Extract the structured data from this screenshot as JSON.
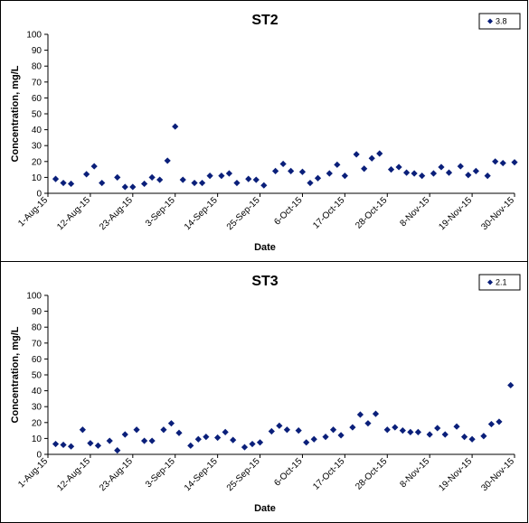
{
  "chart_data": [
    {
      "type": "scatter",
      "title": "ST2",
      "xlabel": "Date",
      "ylabel": "Concentration, mg/L",
      "ylim": [
        0,
        100
      ],
      "yticks": [
        "0",
        "10",
        "20",
        "30",
        "40",
        "50",
        "60",
        "70",
        "80",
        "90",
        "100"
      ],
      "xlim": [
        "2015-08-01",
        "2015-11-30"
      ],
      "xtick_labels": [
        "1-Aug-15",
        "12-Aug-15",
        "23-Aug-15",
        "3-Sep-15",
        "14-Sep-15",
        "25-Sep-15",
        "6-Oct-15",
        "17-Oct-15",
        "28-Oct-15",
        "8-Nov-15",
        "19-Nov-15",
        "30-Nov-15"
      ],
      "grid": false,
      "legend_position": "top-right",
      "marker_color": "#0a1f7a",
      "series": [
        {
          "name": "3.8",
          "points": [
            [
              "2015-08-03",
              9
            ],
            [
              "2015-08-05",
              6.5
            ],
            [
              "2015-08-07",
              6
            ],
            [
              "2015-08-11",
              12
            ],
            [
              "2015-08-13",
              17
            ],
            [
              "2015-08-15",
              6.5
            ],
            [
              "2015-08-19",
              10
            ],
            [
              "2015-08-21",
              4
            ],
            [
              "2015-08-23",
              4
            ],
            [
              "2015-08-26",
              6
            ],
            [
              "2015-08-28",
              10
            ],
            [
              "2015-08-30",
              8.5
            ],
            [
              "2015-09-01",
              20.5
            ],
            [
              "2015-09-03",
              42
            ],
            [
              "2015-09-05",
              8.5
            ],
            [
              "2015-09-08",
              6.5
            ],
            [
              "2015-09-10",
              6.5
            ],
            [
              "2015-09-12",
              11
            ],
            [
              "2015-09-15",
              11
            ],
            [
              "2015-09-17",
              12.5
            ],
            [
              "2015-09-19",
              6.5
            ],
            [
              "2015-09-22",
              9
            ],
            [
              "2015-09-24",
              8.5
            ],
            [
              "2015-09-26",
              5
            ],
            [
              "2015-09-29",
              14
            ],
            [
              "2015-10-01",
              18.5
            ],
            [
              "2015-10-03",
              14
            ],
            [
              "2015-10-06",
              13.5
            ],
            [
              "2015-10-08",
              6.5
            ],
            [
              "2015-10-10",
              9.5
            ],
            [
              "2015-10-13",
              12.5
            ],
            [
              "2015-10-15",
              18
            ],
            [
              "2015-10-17",
              11
            ],
            [
              "2015-10-20",
              24.5
            ],
            [
              "2015-10-22",
              15.5
            ],
            [
              "2015-10-24",
              22
            ],
            [
              "2015-10-26",
              25
            ],
            [
              "2015-10-29",
              15
            ],
            [
              "2015-10-31",
              16.5
            ],
            [
              "2015-11-02",
              13
            ],
            [
              "2015-11-04",
              12.5
            ],
            [
              "2015-11-06",
              11
            ],
            [
              "2015-11-09",
              12.5
            ],
            [
              "2015-11-11",
              16.5
            ],
            [
              "2015-11-13",
              13
            ],
            [
              "2015-11-16",
              17
            ],
            [
              "2015-11-18",
              11.5
            ],
            [
              "2015-11-20",
              14
            ],
            [
              "2015-11-23",
              11
            ],
            [
              "2015-11-25",
              20
            ],
            [
              "2015-11-27",
              19
            ],
            [
              "2015-11-30",
              19.5
            ]
          ]
        }
      ]
    },
    {
      "type": "scatter",
      "title": "ST3",
      "xlabel": "Date",
      "ylabel": "Concentration, mg/L",
      "ylim": [
        0,
        100
      ],
      "yticks": [
        "0",
        "10",
        "20",
        "30",
        "40",
        "50",
        "60",
        "70",
        "80",
        "90",
        "100"
      ],
      "xlim": [
        "2015-08-01",
        "2015-11-30"
      ],
      "xtick_labels": [
        "1-Aug-15",
        "12-Aug-15",
        "23-Aug-15",
        "3-Sep-15",
        "14-Sep-15",
        "25-Sep-15",
        "6-Oct-15",
        "17-Oct-15",
        "28-Oct-15",
        "8-Nov-15",
        "19-Nov-15",
        "30-Nov-15"
      ],
      "grid": false,
      "legend_position": "top-right",
      "marker_color": "#0a1f7a",
      "series": [
        {
          "name": "2.1",
          "points": [
            [
              "2015-08-03",
              6.5
            ],
            [
              "2015-08-05",
              6
            ],
            [
              "2015-08-07",
              5
            ],
            [
              "2015-08-10",
              15.5
            ],
            [
              "2015-08-12",
              7
            ],
            [
              "2015-08-14",
              5.5
            ],
            [
              "2015-08-17",
              8.5
            ],
            [
              "2015-08-19",
              2.5
            ],
            [
              "2015-08-21",
              12.5
            ],
            [
              "2015-08-24",
              15.5
            ],
            [
              "2015-08-26",
              8.5
            ],
            [
              "2015-08-28",
              8.5
            ],
            [
              "2015-08-31",
              15.5
            ],
            [
              "2015-09-02",
              19.5
            ],
            [
              "2015-09-04",
              13.5
            ],
            [
              "2015-09-07",
              5.5
            ],
            [
              "2015-09-09",
              9.5
            ],
            [
              "2015-09-11",
              11
            ],
            [
              "2015-09-14",
              10.5
            ],
            [
              "2015-09-16",
              14
            ],
            [
              "2015-09-18",
              9
            ],
            [
              "2015-09-21",
              4.5
            ],
            [
              "2015-09-23",
              6.5
            ],
            [
              "2015-09-25",
              7.5
            ],
            [
              "2015-09-28",
              14.5
            ],
            [
              "2015-09-30",
              18
            ],
            [
              "2015-10-02",
              15.5
            ],
            [
              "2015-10-05",
              15
            ],
            [
              "2015-10-07",
              7.5
            ],
            [
              "2015-10-09",
              9.5
            ],
            [
              "2015-10-12",
              11
            ],
            [
              "2015-10-14",
              15.5
            ],
            [
              "2015-10-16",
              12
            ],
            [
              "2015-10-19",
              17
            ],
            [
              "2015-10-21",
              25
            ],
            [
              "2015-10-23",
              19.5
            ],
            [
              "2015-10-25",
              25.5
            ],
            [
              "2015-10-28",
              15.5
            ],
            [
              "2015-10-30",
              17
            ],
            [
              "2015-11-01",
              15
            ],
            [
              "2015-11-03",
              14
            ],
            [
              "2015-11-05",
              14
            ],
            [
              "2015-11-08",
              12.5
            ],
            [
              "2015-11-10",
              16.5
            ],
            [
              "2015-11-12",
              12.5
            ],
            [
              "2015-11-15",
              17.5
            ],
            [
              "2015-11-17",
              11
            ],
            [
              "2015-11-19",
              9.5
            ],
            [
              "2015-11-22",
              11.5
            ],
            [
              "2015-11-24",
              19
            ],
            [
              "2015-11-26",
              20.5
            ],
            [
              "2015-11-29",
              43.5
            ]
          ]
        }
      ]
    }
  ]
}
